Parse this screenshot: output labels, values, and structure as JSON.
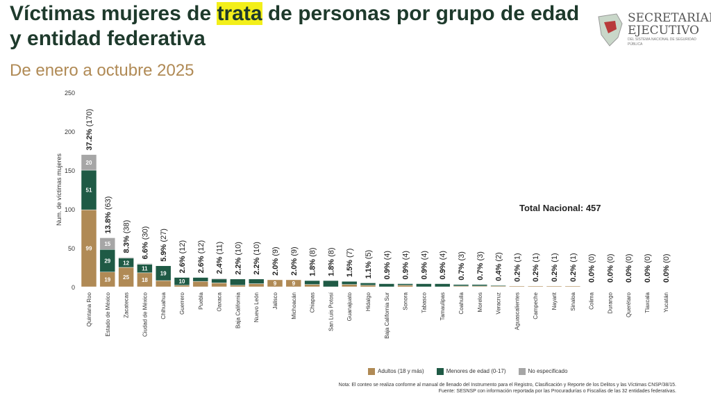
{
  "header": {
    "title_pre": "Víctimas mujeres de ",
    "title_hl": "trata",
    "title_post": " de personas por grupo de edad y entidad federativa",
    "subtitle": "De enero a octubre 2025"
  },
  "logo": {
    "line1": "SECRETARIADO",
    "line2": "EJECUTIVO",
    "line3": "DEL SISTEMA NACIONAL DE SEGURIDAD PÚBLICA"
  },
  "total_label": "Total Nacional: 457",
  "legend": {
    "adultos": "Adultos (18 y más)",
    "menores": "Menores de edad (0-17)",
    "noesp": "No especificado"
  },
  "note": {
    "line1": "Nota: El conteo se realiza conforme al manual de llenado del Instrumento para el Registro, Clasificación y Reporte de los Delitos y las Víctimas CNSP/38/15.",
    "line2": "Fuente: SESNSP con información reportada por las Procuradurías o Fiscalías de las 32 entidades federativas."
  },
  "colors": {
    "adultos": "#b08a55",
    "menores": "#1f5a45",
    "noesp": "#a6a6a6"
  },
  "chart_data": {
    "type": "bar",
    "stacked": true,
    "ylabel": "Num. de víctimas mujeres",
    "ylim": [
      0,
      250
    ],
    "yticks": [
      0,
      50,
      100,
      150,
      200,
      250
    ],
    "categories": [
      "Quintana Roo",
      "Estado de México",
      "Zacatecas",
      "Ciudad de México",
      "Chihuahua",
      "Guerrero",
      "Puebla",
      "Oaxaca",
      "Baja California",
      "Nuevo León",
      "Jalisco",
      "Michoacán",
      "Chiapas",
      "San Luis Potosí",
      "Guanajuato",
      "Hidalgo",
      "Baja California Sur",
      "Sonora",
      "Tabasco",
      "Tamaulipas",
      "Coahuila",
      "Morelos",
      "Veracruz",
      "Aguascalientes",
      "Campeche",
      "Nayarit",
      "Sinaloa",
      "Colima",
      "Durango",
      "Querétaro",
      "Tlaxcala",
      "Yucatán"
    ],
    "series": [
      {
        "name": "Adultos (18 y más)",
        "values": [
          99,
          19,
          25,
          18,
          8,
          2,
          7,
          5,
          2,
          4,
          9,
          9,
          3,
          0,
          3,
          2,
          0,
          2,
          0,
          0,
          1,
          1,
          1,
          1,
          1,
          1,
          1,
          0,
          0,
          0,
          0,
          0
        ]
      },
      {
        "name": "Menores de edad (0-17)",
        "values": [
          51,
          29,
          12,
          11,
          19,
          10,
          5,
          5,
          8,
          6,
          0,
          0,
          5,
          8,
          4,
          3,
          4,
          2,
          4,
          4,
          2,
          2,
          1,
          0,
          0,
          0,
          0,
          0,
          0,
          0,
          0,
          0
        ]
      },
      {
        "name": "No especificado",
        "values": [
          20,
          15,
          1,
          1,
          0,
          0,
          0,
          1,
          0,
          0,
          0,
          0,
          0,
          0,
          0,
          0,
          0,
          0,
          0,
          0,
          0,
          0,
          0,
          0,
          0,
          0,
          0,
          0,
          0,
          0,
          0,
          0
        ]
      }
    ],
    "totals": [
      170,
      63,
      38,
      30,
      27,
      12,
      12,
      11,
      10,
      10,
      9,
      9,
      8,
      8,
      7,
      5,
      4,
      4,
      4,
      4,
      3,
      3,
      2,
      1,
      1,
      1,
      1,
      0,
      0,
      0,
      0,
      0
    ],
    "pct": [
      "37.2%",
      "13.8%",
      "8.3%",
      "6.6%",
      "5.9%",
      "2.6%",
      "2.6%",
      "2.4%",
      "2.2%",
      "2.2%",
      "2.0%",
      "2.0%",
      "1.8%",
      "1.8%",
      "1.5%",
      "1.1%",
      "0.9%",
      "0.9%",
      "0.9%",
      "0.9%",
      "0.7%",
      "0.7%",
      "0.4%",
      "0.2%",
      "0.2%",
      "0.2%",
      "0.2%",
      "0.0%",
      "0.0%",
      "0.0%",
      "0.0%",
      "0.0%"
    ],
    "segment_labels_shown": [
      [
        99,
        51,
        20
      ],
      [
        19,
        29,
        15
      ],
      [
        25,
        12
      ],
      [
        18,
        11
      ],
      [
        8,
        19
      ],
      [
        null,
        10
      ],
      [
        7,
        5
      ],
      [
        null,
        5
      ],
      [
        null,
        8
      ],
      [
        null,
        6
      ],
      [
        9
      ],
      [
        9
      ],
      [
        null,
        5
      ],
      [
        null,
        8
      ]
    ]
  }
}
